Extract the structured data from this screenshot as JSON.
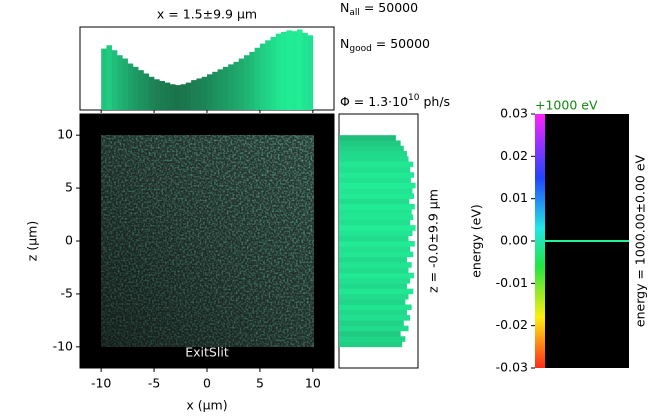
{
  "chart_data": {
    "type": "xrt-beam-plot",
    "title": "x = 1.5±9.9 µm",
    "xlabel": "x (µm)",
    "ylabel": "z (µm)",
    "screen_label": "ExitSlit",
    "xlim": [
      -12,
      12
    ],
    "ylim": [
      -12,
      12
    ],
    "xticks": [
      -10,
      -5,
      0,
      5,
      10
    ],
    "yticks": [
      -10,
      -5,
      0,
      5,
      10
    ],
    "stats": [
      {
        "symbol": "N",
        "subscript": "all",
        "text": " = 50000"
      },
      {
        "symbol": "N",
        "subscript": "good",
        "text": " = 50000"
      }
    ],
    "flux": {
      "text": "Φ = 1.3·10",
      "superscript": "10",
      "unit": " ph/s"
    },
    "side_label": "z = -0.0±9.9 µm",
    "color_low": "#183d2a",
    "color_high": "#22f29a",
    "x_histogram": {
      "bins": [
        -10,
        -9.5,
        -9,
        -8.5,
        -8,
        -7.5,
        -7,
        -6.5,
        -6,
        -5.5,
        -5,
        -4.5,
        -4,
        -3.5,
        -3,
        -2.5,
        -2,
        -1.5,
        -1,
        -0.5,
        0,
        0.5,
        1,
        1.5,
        2,
        2.5,
        3,
        3.5,
        4,
        4.5,
        5,
        5.5,
        6,
        6.5,
        7,
        7.5,
        8,
        8.5,
        9,
        9.5,
        10
      ],
      "counts": [
        0.74,
        0.78,
        0.72,
        0.66,
        0.62,
        0.56,
        0.52,
        0.48,
        0.44,
        0.4,
        0.37,
        0.35,
        0.33,
        0.31,
        0.3,
        0.31,
        0.33,
        0.36,
        0.38,
        0.4,
        0.43,
        0.46,
        0.49,
        0.52,
        0.55,
        0.58,
        0.62,
        0.66,
        0.7,
        0.75,
        0.8,
        0.84,
        0.88,
        0.92,
        0.94,
        0.96,
        0.95,
        0.97,
        0.93,
        0.9
      ],
      "ylim": [
        0,
        1
      ]
    },
    "z_histogram": {
      "bins": [
        -10,
        -9.5,
        -9,
        -8.5,
        -8,
        -7.5,
        -7,
        -6.5,
        -6,
        -5.5,
        -5,
        -4.5,
        -4,
        -3.5,
        -3,
        -2.5,
        -2,
        -1.5,
        -1,
        -0.5,
        0,
        0.5,
        1,
        1.5,
        2,
        2.5,
        3,
        3.5,
        4,
        4.5,
        5,
        5.5,
        6,
        6.5,
        7,
        7.5,
        8,
        8.5,
        9,
        9.5,
        10
      ],
      "counts": [
        0.8,
        0.84,
        0.78,
        0.88,
        0.82,
        0.9,
        0.86,
        0.92,
        0.84,
        0.88,
        0.94,
        0.86,
        0.9,
        0.95,
        0.88,
        0.92,
        0.86,
        0.94,
        0.9,
        0.96,
        0.88,
        0.93,
        0.97,
        0.9,
        0.94,
        0.92,
        0.96,
        0.89,
        0.95,
        0.93,
        0.97,
        0.91,
        0.95,
        0.9,
        0.94,
        0.88,
        0.86,
        0.82,
        0.78,
        0.72
      ],
      "xlim": [
        0,
        1
      ]
    },
    "energy_offset": "+1000 eV",
    "energy_label": "energy (eV)",
    "energy_side_label": "energy = 1000.00±0.00 eV",
    "energy_lim": [
      -0.03,
      0.03
    ],
    "energy_ticks": [
      0.03,
      0.02,
      0.01,
      {
        "value": 0,
        "label": "0.00"
      },
      -0.01,
      -0.02,
      -0.03
    ],
    "energy_peak": 0
  }
}
